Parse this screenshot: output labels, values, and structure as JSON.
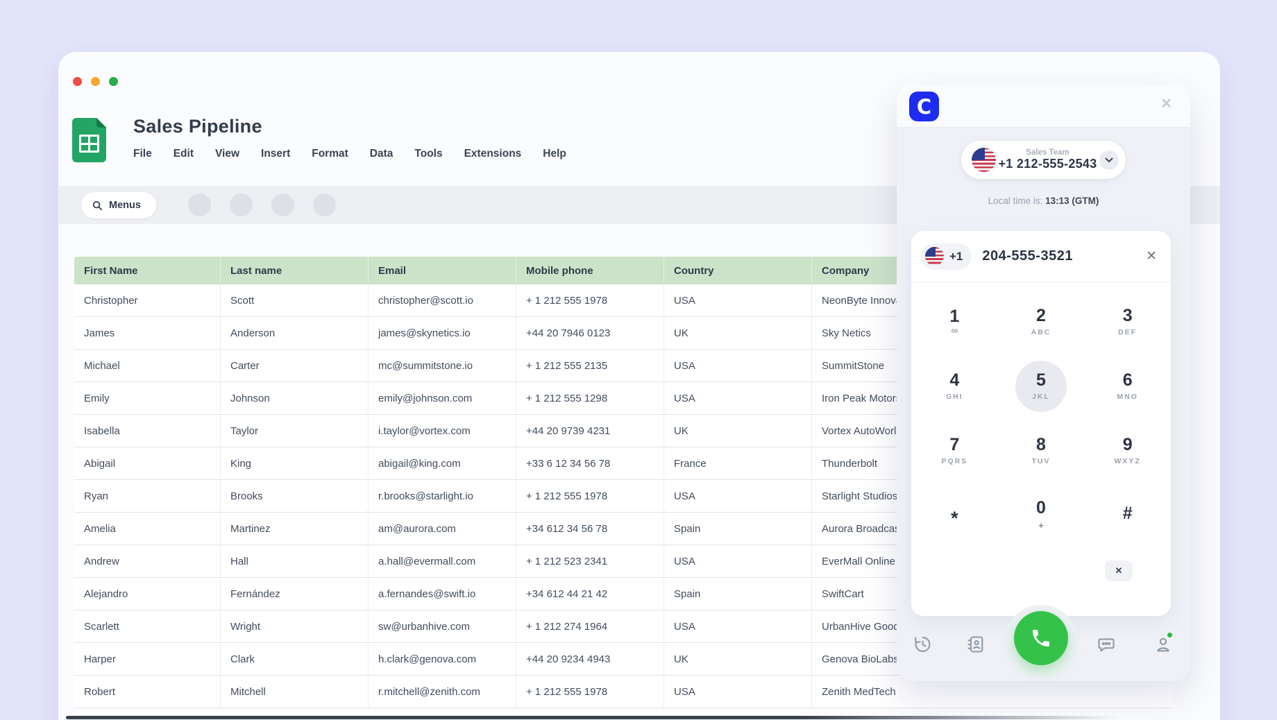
{
  "window": {
    "title": "Sales Pipeline",
    "menu_items": [
      "File",
      "Edit",
      "View",
      "Insert",
      "Format",
      "Data",
      "Tools",
      "Extensions",
      "Help"
    ],
    "toolbar": {
      "menus_label": "Menus"
    }
  },
  "table": {
    "columns": [
      "First Name",
      "Last name",
      "Email",
      "Mobile phone",
      "Country",
      "Company"
    ],
    "rows": [
      [
        "Christopher",
        "Scott",
        "christopher@scott.io",
        "+ 1 212 555 1978",
        "USA",
        "NeonByte Innova"
      ],
      [
        "James",
        "Anderson",
        "james@skynetics.io",
        "+44 20 7946 0123",
        "UK",
        "Sky Netics"
      ],
      [
        "Michael",
        "Carter",
        "mc@summitstone.io",
        "+ 1 212 555 2135",
        "USA",
        "SummitStone"
      ],
      [
        "Emily",
        "Johnson",
        "emily@johnson.com",
        "+ 1 212 555 1298",
        "USA",
        "Iron Peak Motors"
      ],
      [
        "Isabella",
        "Taylor",
        "i.taylor@vortex.com",
        "+44 20 9739 4231",
        "UK",
        "Vortex AutoWorl"
      ],
      [
        "Abigail",
        "King",
        "abigail@king.com",
        "+33 6 12 34 56 78",
        "France",
        "Thunderbolt"
      ],
      [
        "Ryan",
        "Brooks",
        "r.brooks@starlight.io",
        "+ 1 212 555 1978",
        "USA",
        "Starlight Studios"
      ],
      [
        "Amelia",
        "Martinez",
        "am@aurora.com",
        "+34 612 34 56 78",
        "Spain",
        "Aurora Broadcas"
      ],
      [
        "Andrew",
        "Hall",
        "a.hall@evermall.com",
        "+ 1 212 523 2341",
        "USA",
        "EverMall Online"
      ],
      [
        "Alejandro",
        "Fernández",
        "a.fernandes@swift.io",
        "+34 612 44 21 42",
        "Spain",
        "SwiftCart"
      ],
      [
        "Scarlett",
        "Wright",
        "sw@urbanhive.com",
        "+ 1 212 274 1964",
        "USA",
        "UrbanHive Good"
      ],
      [
        "Harper",
        "Clark",
        "h.clark@genova.com",
        "+44 20 9234 4943",
        "UK",
        "Genova BioLabs"
      ],
      [
        "Robert",
        "Mitchell",
        "r.mitchell@zenith.com",
        "+ 1 212 555 1978",
        "USA",
        "Zenith MedTech"
      ]
    ]
  },
  "dialer": {
    "brand_letter": "C",
    "line": {
      "label": "Sales Team",
      "number": "+1 212-555-2543"
    },
    "local_time_label": "Local time is:",
    "local_time_value": "13:13 (GTM)",
    "input": {
      "country_code": "+1",
      "number": "204-555-3521"
    },
    "keypad": [
      {
        "digit": "1",
        "sub": "voicemail"
      },
      {
        "digit": "2",
        "sub": "ABC"
      },
      {
        "digit": "3",
        "sub": "DEF"
      },
      {
        "digit": "4",
        "sub": "GHI"
      },
      {
        "digit": "5",
        "sub": "JKL",
        "active": true
      },
      {
        "digit": "6",
        "sub": "MNO"
      },
      {
        "digit": "7",
        "sub": "PQRS"
      },
      {
        "digit": "8",
        "sub": "TUV"
      },
      {
        "digit": "9",
        "sub": "WXYZ"
      },
      {
        "digit": "*",
        "sub": ""
      },
      {
        "digit": "0",
        "sub": "+"
      },
      {
        "digit": "#",
        "sub": ""
      }
    ],
    "colors": {
      "brand_blue": "#1d2cf0",
      "call_green": "#35c24b",
      "header_green": "#cde3c9",
      "page_background": "#e3e5fa"
    }
  }
}
